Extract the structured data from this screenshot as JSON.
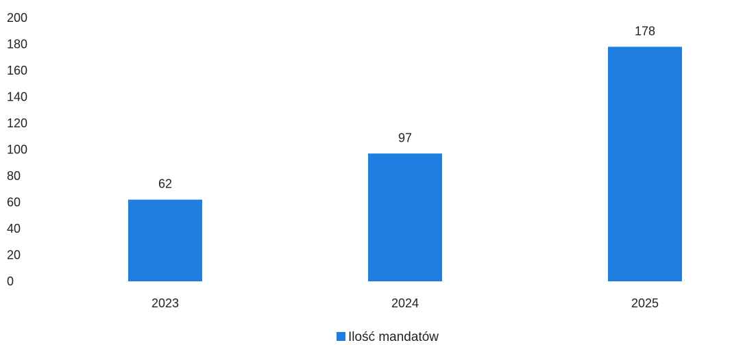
{
  "chart_data": {
    "type": "bar",
    "categories": [
      "2023",
      "2024",
      "2025"
    ],
    "series": [
      {
        "name": "Ilość mandatów",
        "values": [
          62,
          97,
          178
        ]
      }
    ],
    "data_labels": [
      "62",
      "97",
      "178"
    ],
    "y_ticks": [
      "0",
      "20",
      "40",
      "60",
      "80",
      "100",
      "120",
      "140",
      "160",
      "180",
      "200"
    ],
    "ylim": [
      0,
      200
    ],
    "grid": false,
    "legend": "bottom",
    "colors": {
      "bar": "#1f7fe0",
      "text": "#222222"
    }
  }
}
